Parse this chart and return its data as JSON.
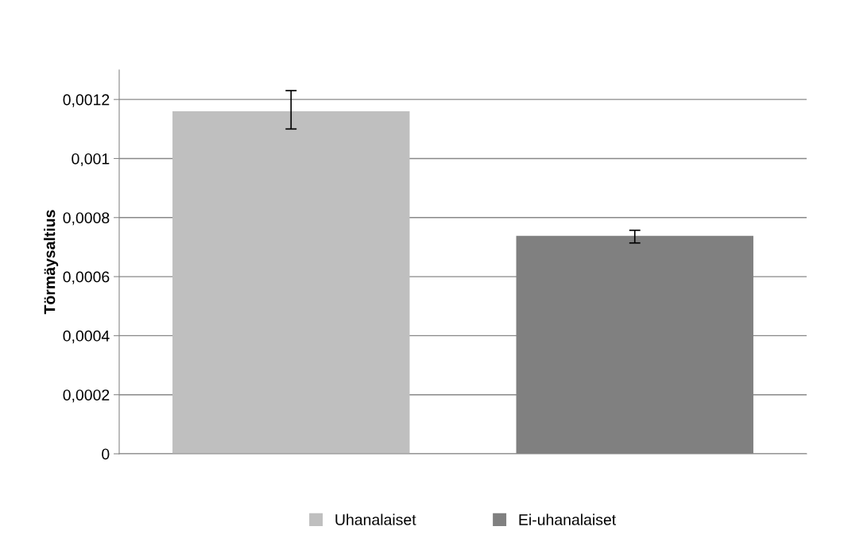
{
  "chart_data": {
    "type": "bar",
    "ylabel": "Törmäysaltius",
    "categories": [
      null,
      null
    ],
    "series": [
      {
        "name": "Uhanalaiset",
        "color": "#bfbfbf",
        "values": [
          0.00116,
          null
        ],
        "errors": [
          [
            0.0011,
            0.00123
          ],
          null
        ]
      },
      {
        "name": "Ei-uhanalaiset",
        "color": "#808080",
        "values": [
          null,
          0.000738
        ],
        "errors": [
          null,
          [
            0.000714,
            0.000757
          ]
        ]
      }
    ],
    "ylim": [
      0,
      0.0013
    ],
    "yticks": [
      {
        "value": 0,
        "label": "0"
      },
      {
        "value": 0.0002,
        "label": "0,0002"
      },
      {
        "value": 0.0004,
        "label": "0,0004"
      },
      {
        "value": 0.0006,
        "label": "0,0006"
      },
      {
        "value": 0.0008,
        "label": "0,0008"
      },
      {
        "value": 0.001,
        "label": "0,001"
      },
      {
        "value": 0.0012,
        "label": "0,0012"
      }
    ],
    "grid": "y",
    "legend": "bottom"
  }
}
